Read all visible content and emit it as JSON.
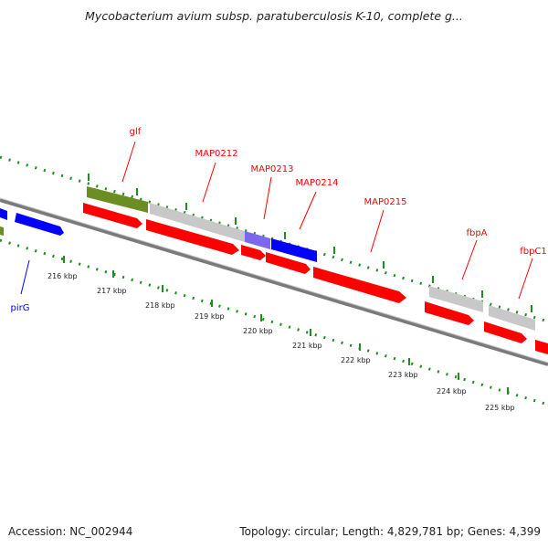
{
  "title": "Mycobacterium avium subsp. paratuberculosis K-10, complete g...",
  "footer": {
    "accession": "Accession: NC_002944",
    "summary": "Topology: circular; Length: 4,829,781 bp; Genes: 4,399"
  },
  "colors": {
    "cds": "#ff0000",
    "trna": "#0000ff",
    "gene_other": "#6b8e23",
    "pseudo": "#c8c8c8",
    "misc": "#7b68ee",
    "ticks": "#228b22",
    "backbone": "#808080"
  },
  "features": [
    {
      "label": "glf",
      "color": "red"
    },
    {
      "label": "MAP0212",
      "color": "red"
    },
    {
      "label": "MAP0213",
      "color": "red"
    },
    {
      "label": "MAP0214",
      "color": "red"
    },
    {
      "label": "MAP0215",
      "color": "red"
    },
    {
      "label": "fbpA",
      "color": "red"
    },
    {
      "label": "fbpC1",
      "color": "red"
    },
    {
      "label": "pirG",
      "color": "blue"
    }
  ],
  "scale_labels": [
    "216 kbp",
    "217 kbp",
    "218 kbp",
    "219 kbp",
    "220 kbp",
    "221 kbp",
    "222 kbp",
    "223 kbp",
    "224 kbp",
    "225 kbp"
  ]
}
